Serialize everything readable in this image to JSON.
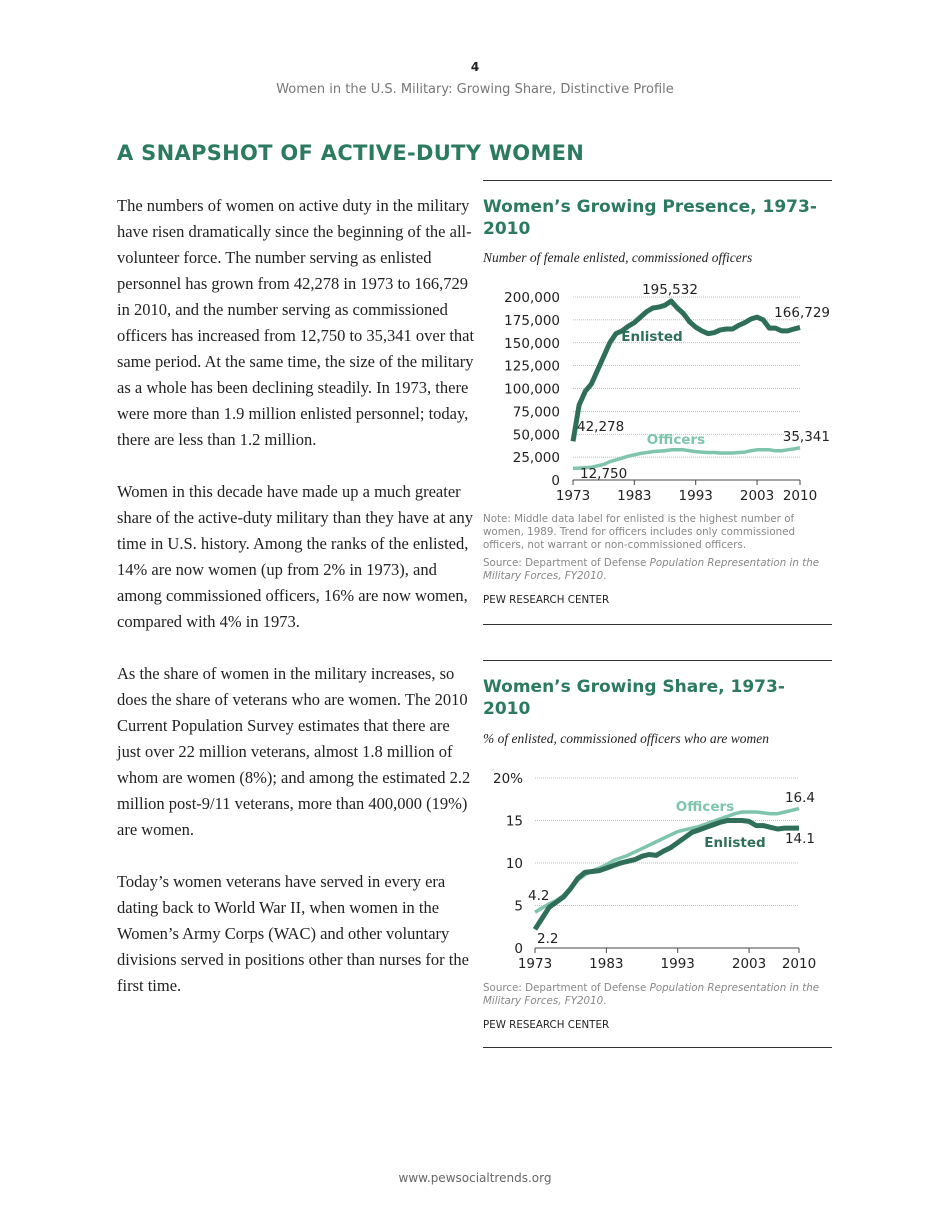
{
  "header": {
    "page_number": "4",
    "subtitle": "Women in the U.S. Military: Growing Share, Distinctive Profile"
  },
  "section_title": "A SNAPSHOT OF ACTIVE-DUTY WOMEN",
  "paragraphs": [
    "The numbers of women on active duty in the military have risen dramatically since the beginning of the all-volunteer force. The number serving as enlisted personnel has grown from 42,278 in 1973 to 166,729 in 2010, and the number serving as commissioned officers has increased from 12,750 to 35,341 over that same period. At the same time, the size of the military as a whole has been declining steadily. In 1973, there were more than 1.9 million enlisted personnel; today, there are less than 1.2 million.",
    "Women in this decade have made up a much greater share of the active-duty military than they have at any time in U.S. history. Among the ranks of the enlisted, 14% are now women (up from 2% in 1973), and among commissioned officers, 16% are now women, compared with 4% in 1973.",
    "As the share of women in the military increases, so does the share of veterans who are women. The 2010 Current Population Survey estimates that there are just over 22 million veterans, almost 1.8 million of whom are women (8%); and among the estimated 2.2 million post-9/11 veterans, more than 400,000 (19%) are women.",
    "Today’s women veterans have served in every era dating back to World War II, when women in the Women’s Army Corps (WAC) and other voluntary divisions served in positions other than nurses for the first time."
  ],
  "charts": [
    {
      "title": "Women’s Growing Presence, 1973-2010",
      "subtitle": "Number of female enlisted, commissioned officers",
      "note": "Note: Middle data label for enlisted is the highest number of women, 1989. Trend for officers includes only commissioned officers, not warrant or non-commissioned officers.",
      "source_prefix": "Source: Department of Defense ",
      "source_italic": "Population Representation in the Military Forces, FY2010",
      "source_suffix": ".",
      "credit": "PEW RESEARCH CENTER"
    },
    {
      "title": "Women’s Growing Share, 1973-2010",
      "subtitle": "% of enlisted, commissioned officers who are women",
      "source_prefix": "Source: Department of Defense ",
      "source_italic": "Population Representation in the Military Forces, FY2010",
      "source_suffix": ".",
      "credit": "PEW RESEARCH CENTER"
    }
  ],
  "chart_data": [
    {
      "type": "line",
      "title": "Women’s Growing Presence, 1973-2010",
      "xlim": [
        1973,
        2010
      ],
      "ylim": [
        0,
        200000
      ],
      "yticks": [
        "0",
        "25,000",
        "50,000",
        "75,000",
        "100,000",
        "125,000",
        "150,000",
        "175,000",
        "200,000"
      ],
      "xticks": [
        "1973",
        "1983",
        "1993",
        "2003",
        "2010"
      ],
      "grid": true,
      "x": [
        1973,
        1974,
        1975,
        1976,
        1977,
        1978,
        1979,
        1980,
        1981,
        1982,
        1983,
        1984,
        1985,
        1986,
        1987,
        1988,
        1989,
        1990,
        1991,
        1992,
        1993,
        1994,
        1995,
        1996,
        1997,
        1998,
        1999,
        2000,
        2001,
        2002,
        2003,
        2004,
        2005,
        2006,
        2007,
        2008,
        2009,
        2010
      ],
      "series": [
        {
          "name": "Enlisted",
          "color": "#2f6e59",
          "values": [
            42278,
            82000,
            97000,
            105000,
            120000,
            135000,
            150000,
            160000,
            163000,
            168000,
            172000,
            178000,
            184000,
            188000,
            189000,
            191000,
            195532,
            188000,
            182000,
            173000,
            167000,
            163000,
            160000,
            161000,
            164000,
            165000,
            165000,
            169000,
            172000,
            176000,
            178000,
            175000,
            166000,
            166000,
            163000,
            163000,
            165000,
            166729
          ]
        },
        {
          "name": "Officers",
          "color": "#7fc4ad",
          "values": [
            12750,
            13000,
            13500,
            14000,
            15500,
            17000,
            20000,
            22000,
            24000,
            26000,
            27500,
            29000,
            30000,
            31000,
            31500,
            32000,
            33000,
            33000,
            33000,
            32000,
            31000,
            30500,
            30000,
            30000,
            29500,
            29500,
            29500,
            30000,
            30500,
            32000,
            33000,
            33000,
            33000,
            32000,
            32000,
            33000,
            34000,
            35341
          ]
        }
      ],
      "data_labels": [
        "195,532",
        "166,729",
        "42,278",
        "12,750",
        "35,341"
      ]
    },
    {
      "type": "line",
      "title": "Women’s Growing Share, 1973-2010",
      "xlim": [
        1973,
        2010
      ],
      "ylim": [
        0,
        20
      ],
      "yticks": [
        "0",
        "5",
        "10",
        "15",
        "20%"
      ],
      "xticks": [
        "1973",
        "1983",
        "1993",
        "2003",
        "2010"
      ],
      "grid": true,
      "x": [
        1973,
        1974,
        1975,
        1976,
        1977,
        1978,
        1979,
        1980,
        1981,
        1982,
        1983,
        1984,
        1985,
        1986,
        1987,
        1988,
        1989,
        1990,
        1991,
        1992,
        1993,
        1994,
        1995,
        1996,
        1997,
        1998,
        1999,
        2000,
        2001,
        2002,
        2003,
        2004,
        2005,
        2006,
        2007,
        2008,
        2009,
        2010
      ],
      "series": [
        {
          "name": "Officers",
          "color": "#7fc4ad",
          "values": [
            4.2,
            4.7,
            5.2,
            5.6,
            6.2,
            7.1,
            8.0,
            8.6,
            9.1,
            9.4,
            9.8,
            10.3,
            10.6,
            10.9,
            11.3,
            11.7,
            12.1,
            12.5,
            12.9,
            13.3,
            13.7,
            13.9,
            14.1,
            14.3,
            14.6,
            14.9,
            15.2,
            15.5,
            15.8,
            16.0,
            16.0,
            16.0,
            15.9,
            15.8,
            15.8,
            16.0,
            16.2,
            16.4
          ]
        },
        {
          "name": "Enlisted",
          "color": "#2f6e59",
          "values": [
            2.2,
            3.5,
            4.8,
            5.4,
            6.0,
            7.0,
            8.2,
            8.9,
            9.0,
            9.1,
            9.4,
            9.7,
            10.0,
            10.2,
            10.4,
            10.8,
            11.0,
            10.9,
            11.4,
            11.8,
            12.4,
            13.0,
            13.6,
            13.9,
            14.2,
            14.5,
            14.8,
            15.0,
            15.0,
            15.0,
            14.9,
            14.4,
            14.4,
            14.2,
            14.0,
            14.1,
            14.1,
            14.1
          ]
        }
      ],
      "data_labels": [
        "16.4",
        "14.1",
        "4.2",
        "2.2"
      ]
    }
  ],
  "footer": "www.pewsocialtrends.org"
}
